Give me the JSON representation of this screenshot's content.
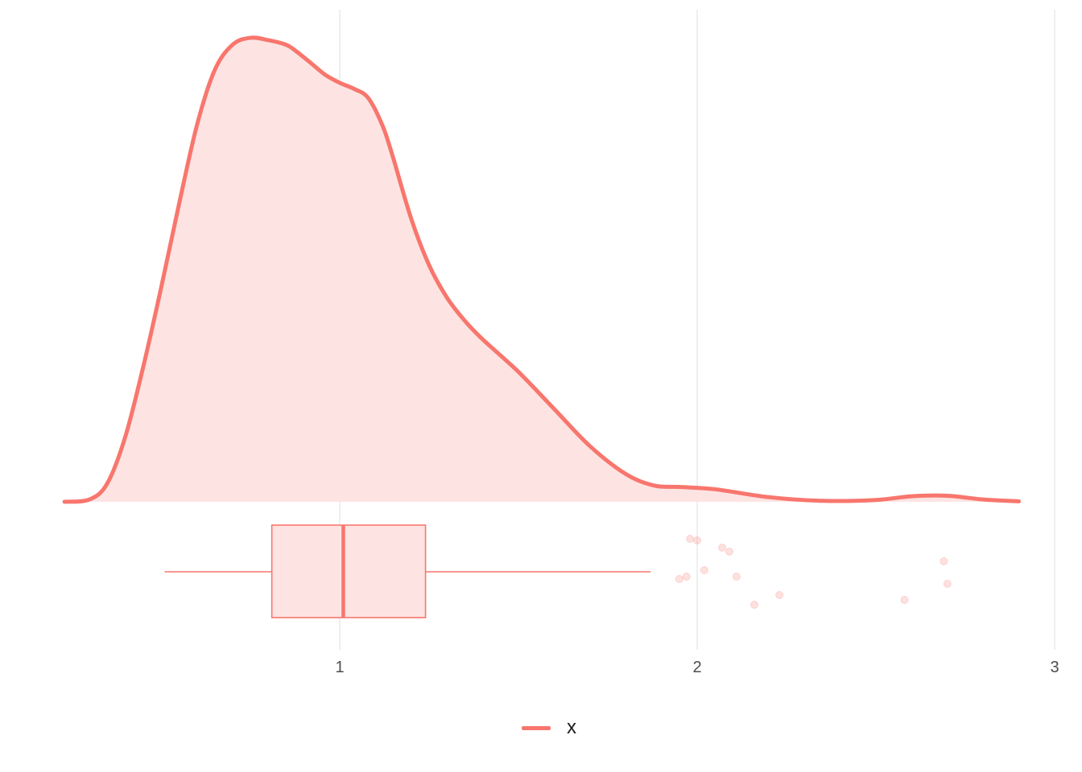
{
  "chart_data": {
    "type": "area",
    "xlim": [
      0.22,
      3.02
    ],
    "x_ticks": [
      1,
      2,
      3
    ],
    "x_tick_labels": [
      "1",
      "2",
      "3"
    ],
    "grid": "vertical major",
    "legend": {
      "position": "bottom",
      "entries": [
        "x"
      ]
    },
    "colors": {
      "line": "#f8766d",
      "fill": "#fde4e3",
      "grid": "#ebebeb",
      "text": "#4d4d4d"
    },
    "density": {
      "x": [
        0.23,
        0.3,
        0.35,
        0.4,
        0.45,
        0.5,
        0.55,
        0.6,
        0.65,
        0.7,
        0.75,
        0.8,
        0.85,
        0.88,
        0.92,
        0.96,
        1.0,
        1.04,
        1.08,
        1.12,
        1.15,
        1.2,
        1.25,
        1.3,
        1.35,
        1.4,
        1.5,
        1.6,
        1.7,
        1.8,
        1.88,
        1.95,
        2.05,
        2.2,
        2.35,
        2.5,
        2.6,
        2.7,
        2.8,
        2.9
      ],
      "y": [
        0.0,
        0.005,
        0.04,
        0.14,
        0.29,
        0.46,
        0.64,
        0.81,
        0.93,
        0.985,
        1.0,
        0.995,
        0.985,
        0.97,
        0.945,
        0.92,
        0.903,
        0.89,
        0.87,
        0.81,
        0.74,
        0.61,
        0.51,
        0.44,
        0.39,
        0.35,
        0.28,
        0.2,
        0.12,
        0.06,
        0.035,
        0.032,
        0.027,
        0.01,
        0.002,
        0.004,
        0.012,
        0.013,
        0.005,
        0.001
      ]
    },
    "boxplot": {
      "whisker_low": 0.51,
      "q1": 0.81,
      "median": 1.01,
      "q3": 1.24,
      "whisker_high": 1.87,
      "outliers": [
        1.95,
        1.97,
        1.98,
        2.0,
        2.02,
        2.07,
        2.09,
        2.11,
        2.16,
        2.23,
        2.58,
        2.69,
        2.7
      ]
    }
  }
}
